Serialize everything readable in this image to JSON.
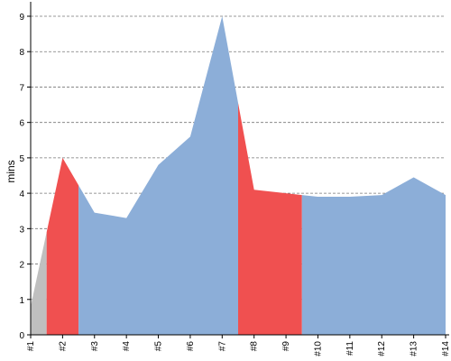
{
  "chart_data": {
    "type": "area",
    "title": "",
    "xlabel": "",
    "ylabel": "mins",
    "ylim": [
      0,
      9
    ],
    "y_ticks": [
      0,
      1,
      2,
      3,
      4,
      5,
      6,
      7,
      8,
      9
    ],
    "grid": "horizontal dashed",
    "legend": "none",
    "categories": [
      "#1",
      "#2",
      "#3",
      "#4",
      "#5",
      "#6",
      "#7",
      "#8",
      "#9",
      "#10",
      "#11",
      "#12",
      "#13",
      "#14"
    ],
    "values": [
      0.8,
      5.0,
      3.45,
      3.3,
      4.8,
      5.6,
      9.0,
      4.1,
      4.0,
      3.9,
      3.9,
      3.95,
      4.45,
      3.95
    ],
    "segments": [
      {
        "from": 0,
        "to": 0.5,
        "color": "#bfbfbf"
      },
      {
        "from": 0.5,
        "to": 1.5,
        "color": "#f05050"
      },
      {
        "from": 1.5,
        "to": 6.5,
        "color": "#8caed8"
      },
      {
        "from": 6.5,
        "to": 8.5,
        "color": "#f05050"
      },
      {
        "from": 8.5,
        "to": 13,
        "color": "#8caed8"
      }
    ]
  }
}
